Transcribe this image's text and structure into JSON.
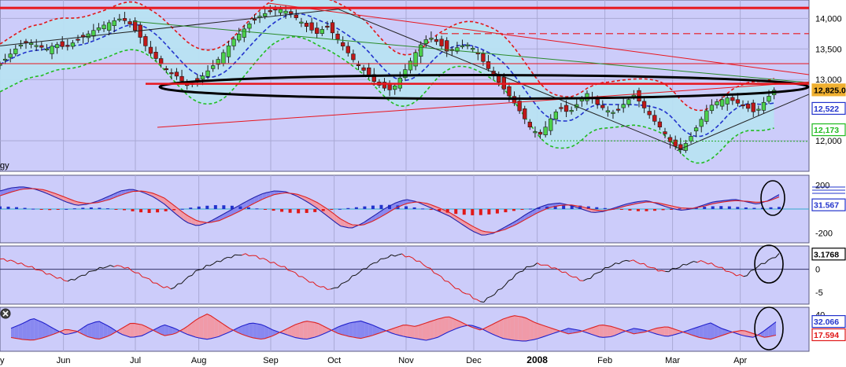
{
  "colors": {
    "panel_bg": "#ccccfa",
    "band_fill": "#b8e2f2",
    "up_candle": "#4cd14c",
    "down_candle": "#c01818",
    "resistance": "#e8161e",
    "ellipse": "#000000",
    "ma_blue": "#2233cc",
    "env_red": "#e01818",
    "env_green": "#22bb22",
    "macd_up": "#2233cc",
    "macd_down": "#e01818",
    "fill_blue": "#8888f0",
    "fill_red": "#f09aa8",
    "grid": "#a9a9d4"
  },
  "close_icon": "close-icon",
  "chart_data": [
    {
      "type": "candlestick",
      "panel": "price",
      "y_ticks": [
        "14,000",
        "13,500",
        "13,000",
        "12,000"
      ],
      "y_tick_values": [
        14000,
        13500,
        13000,
        12000
      ],
      "ylim": [
        11500,
        14300
      ],
      "x_months": [
        "y",
        "Jun",
        "Jul",
        "Aug",
        "Sep",
        "Oct",
        "Nov",
        "Dec",
        "2008",
        "Feb",
        "Mar",
        "Apr"
      ],
      "x_month_pos": [
        0,
        0.075,
        0.16,
        0.235,
        0.32,
        0.395,
        0.48,
        0.56,
        0.635,
        0.715,
        0.795,
        0.875
      ],
      "side_labels": [
        {
          "text": "12,825.0",
          "value": 12825,
          "color": "#f0b030"
        },
        {
          "text": "12,522",
          "value": 12522,
          "color": "#2233cc"
        },
        {
          "text": "12,173",
          "value": 12173,
          "color": "#22bb22"
        }
      ],
      "legend_fragment": "gy",
      "resistance_level": 14170,
      "dashed_level": 13750,
      "mid_level": 13260,
      "ellipse_level": 12880,
      "close_path": [
        13250,
        13400,
        13550,
        13620,
        13550,
        13500,
        13580,
        13520,
        13620,
        13700,
        13800,
        13880,
        13950,
        14000,
        13900,
        13700,
        13450,
        13300,
        13150,
        13050,
        12900,
        12950,
        13100,
        13250,
        13450,
        13650,
        13800,
        13950,
        14050,
        14120,
        14150,
        14100,
        13980,
        13850,
        13750,
        13880,
        13700,
        13500,
        13300,
        13150,
        12980,
        12870,
        12820,
        13050,
        13300,
        13550,
        13700,
        13600,
        13450,
        13520,
        13580,
        13480,
        13250,
        13050,
        12850,
        12650,
        12420,
        12180,
        12100,
        12350,
        12550,
        12450,
        12620,
        12780,
        12600,
        12500,
        12450,
        12620,
        12750,
        12550,
        12350,
        12180,
        11950,
        11850,
        12050,
        12300,
        12550,
        12650,
        12700,
        12620,
        12550,
        12450,
        12650,
        12825
      ],
      "close_path_xlim": [
        0.0,
        0.915
      ]
    },
    {
      "type": "histogram",
      "panel": "macd",
      "y_ticks": [
        "200",
        "-200"
      ],
      "y_tick_values": [
        200,
        -200
      ],
      "ylim": [
        -280,
        280
      ],
      "side_labels": [
        {
          "text": "31.567",
          "value": 31.567,
          "color": "#2233cc"
        }
      ],
      "hist_values": [
        40,
        35,
        25,
        10,
        -5,
        -15,
        -10,
        5,
        15,
        25,
        20,
        10,
        -5,
        -25,
        -45,
        -60,
        -50,
        -30,
        -10,
        15,
        35,
        50,
        60,
        55,
        45,
        30,
        10,
        -10,
        -30,
        -50,
        -65,
        -60,
        -45,
        -25,
        -5,
        10,
        25,
        40,
        55,
        65,
        60,
        45,
        25,
        5,
        -20,
        -45,
        -70,
        -85,
        -95,
        -90,
        -75,
        -55,
        -30,
        -10,
        10,
        30,
        45,
        55,
        60,
        50,
        35,
        20,
        5,
        -10,
        -25,
        -35,
        -30,
        -20,
        -5,
        10,
        20,
        30,
        40,
        45,
        40,
        30,
        20,
        15,
        25,
        31.567
      ],
      "macd_line": [
        150,
        175,
        185,
        170,
        140,
        100,
        60,
        30,
        40,
        70,
        110,
        150,
        165,
        140,
        100,
        40,
        -40,
        -110,
        -140,
        -110,
        -60,
        -10,
        40,
        90,
        130,
        150,
        145,
        110,
        60,
        0,
        -70,
        -140,
        -160,
        -120,
        -60,
        0,
        50,
        80,
        60,
        20,
        -20,
        -60,
        -120,
        -180,
        -220,
        -200,
        -150,
        -100,
        -40,
        10,
        40,
        50,
        30,
        0,
        -30,
        -20,
        10,
        40,
        60,
        70,
        40,
        10,
        -10,
        0,
        30,
        60,
        70,
        80,
        60,
        40,
        70,
        120
      ],
      "signal_line": [
        110,
        140,
        165,
        170,
        160,
        130,
        95,
        60,
        45,
        55,
        80,
        115,
        145,
        150,
        130,
        90,
        20,
        -50,
        -100,
        -115,
        -95,
        -55,
        -10,
        40,
        85,
        120,
        135,
        125,
        95,
        50,
        -10,
        -80,
        -130,
        -135,
        -100,
        -50,
        5,
        45,
        60,
        45,
        10,
        -30,
        -85,
        -140,
        -185,
        -195,
        -170,
        -130,
        -80,
        -30,
        10,
        30,
        35,
        20,
        -5,
        -15,
        0,
        25,
        45,
        60,
        50,
        30,
        10,
        5,
        20,
        45,
        60,
        70,
        65,
        55,
        65,
        100
      ]
    },
    {
      "type": "line",
      "panel": "oscillator",
      "y_ticks": [
        "0",
        "-5"
      ],
      "y_tick_values": [
        0,
        -5
      ],
      "ylim": [
        -7.5,
        5
      ],
      "side_labels": [
        {
          "text": "3.1768",
          "value": 3.1768,
          "color": "#000000"
        }
      ],
      "values": [
        2.2,
        1.8,
        1.0,
        0.2,
        -0.8,
        -1.8,
        -2.6,
        -1.6,
        -0.4,
        0.4,
        0.8,
        0.4,
        -0.9,
        -2.2,
        -3.6,
        -4.2,
        -2.6,
        -0.6,
        0.6,
        1.6,
        2.6,
        3.2,
        3.0,
        2.2,
        1.2,
        0.2,
        -1.2,
        -2.6,
        -3.8,
        -4.4,
        -3.0,
        -1.2,
        0.4,
        1.8,
        2.8,
        3.2,
        2.4,
        1.0,
        -0.8,
        -2.6,
        -4.4,
        -5.6,
        -7.2,
        -5.6,
        -3.6,
        -1.2,
        0.4,
        1.2,
        0.6,
        -0.4,
        -1.6,
        -2.6,
        -1.0,
        0.4,
        1.4,
        2.0,
        1.2,
        0.2,
        -0.6,
        0.2,
        1.2,
        1.8,
        1.2,
        0.2,
        -1.0,
        -1.6,
        0.4,
        1.8,
        3.1768
      ]
    },
    {
      "type": "area",
      "panel": "directional",
      "y_ticks": [
        "40"
      ],
      "y_tick_values": [
        40
      ],
      "ylim": [
        0,
        48
      ],
      "side_labels": [
        {
          "text": "32.066",
          "value": 32.066,
          "color": "#2233cc"
        },
        {
          "text": "17.594",
          "value": 17.594,
          "color": "#e01818"
        }
      ],
      "series": [
        {
          "name": "",
          "values": [
            25,
            30,
            36,
            31,
            24,
            18,
            21,
            29,
            33,
            27,
            19,
            15,
            17,
            23,
            29,
            25,
            19,
            15,
            13,
            16,
            21,
            27,
            31,
            29,
            23,
            19,
            15,
            13,
            16,
            21,
            27,
            31,
            33,
            29,
            24,
            19,
            16,
            14,
            12,
            15,
            21,
            26,
            29,
            25,
            19,
            14,
            12,
            11,
            13,
            17,
            21,
            25,
            23,
            19,
            15,
            16,
            21,
            25,
            23,
            19,
            16,
            19,
            23,
            27,
            31,
            25,
            21,
            17,
            15,
            23,
            32.066
          ]
        },
        {
          "name": "",
          "values": [
            15,
            13,
            12,
            15,
            19,
            24,
            22,
            16,
            13,
            17,
            24,
            31,
            29,
            23,
            17,
            19,
            26,
            35,
            41,
            33,
            25,
            19,
            15,
            13,
            17,
            23,
            29,
            33,
            31,
            25,
            19,
            16,
            14,
            17,
            21,
            25,
            29,
            27,
            31,
            35,
            38,
            33,
            27,
            23,
            29,
            35,
            39,
            37,
            31,
            27,
            23,
            19,
            21,
            25,
            29,
            27,
            23,
            19,
            21,
            25,
            27,
            23,
            19,
            15,
            13,
            17,
            21,
            23,
            19,
            15,
            17.594
          ]
        }
      ]
    }
  ]
}
